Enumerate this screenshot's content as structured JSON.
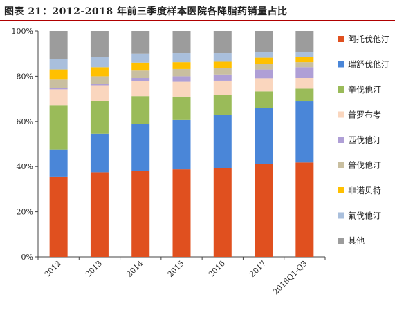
{
  "chart_data": {
    "type": "bar",
    "stacked": true,
    "title": "图表 21：2012-2018 年前三季度样本医院各降脂药销量占比",
    "xlabel": "",
    "ylabel": "",
    "ylim": [
      0,
      100
    ],
    "yticks": [
      "0%",
      "20%",
      "40%",
      "60%",
      "80%",
      "100%"
    ],
    "categories": [
      "2012",
      "2013",
      "2014",
      "2015",
      "2016",
      "2017",
      "2018Q1-Q3"
    ],
    "legend_position": "right",
    "grid": false,
    "series": [
      {
        "name": "阿托伐他汀",
        "color": "#E0501F",
        "values": [
          35.5,
          37.5,
          38.0,
          38.8,
          39.2,
          41.0,
          41.8
        ]
      },
      {
        "name": "瑞舒伐他汀",
        "color": "#4A86D8",
        "values": [
          12.0,
          17.0,
          21.0,
          21.8,
          23.8,
          25.0,
          27.0
        ]
      },
      {
        "name": "辛伐他汀",
        "color": "#9ABB59",
        "values": [
          19.7,
          14.5,
          12.2,
          10.4,
          8.7,
          7.3,
          5.7
        ]
      },
      {
        "name": "普罗布考",
        "color": "#FAD6BE",
        "values": [
          7.0,
          7.0,
          6.5,
          6.5,
          6.3,
          5.8,
          4.7
        ]
      },
      {
        "name": "匹伐他汀",
        "color": "#AF9FD6",
        "values": [
          0.5,
          0.5,
          1.5,
          2.5,
          2.8,
          3.9,
          4.8
        ]
      },
      {
        "name": "普伐他汀",
        "color": "#C9BFA0",
        "values": [
          3.8,
          3.5,
          3.3,
          3.2,
          2.8,
          2.5,
          2.2
        ]
      },
      {
        "name": "非诺贝特",
        "color": "#FFC000",
        "values": [
          4.5,
          4.0,
          3.5,
          3.0,
          2.8,
          2.7,
          2.3
        ]
      },
      {
        "name": "氟伐他汀",
        "color": "#A9BFDC",
        "values": [
          4.5,
          4.5,
          4.0,
          4.0,
          3.8,
          2.3,
          2.0
        ]
      },
      {
        "name": "其他",
        "color": "#9C9C9C",
        "values": [
          12.5,
          11.5,
          10.0,
          9.8,
          9.8,
          9.5,
          9.5
        ]
      }
    ]
  }
}
